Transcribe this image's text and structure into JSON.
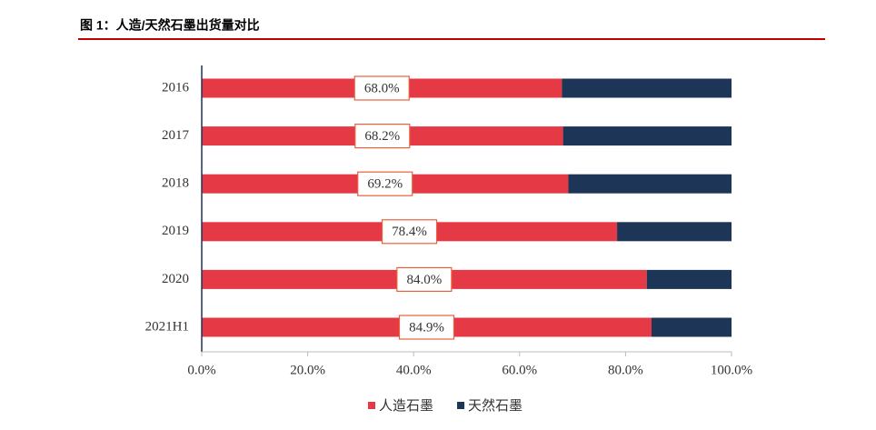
{
  "chart_data": {
    "type": "stacked_barh",
    "title": "图 1：人造/天然石墨出货量对比",
    "categories": [
      "2016",
      "2017",
      "2018",
      "2019",
      "2020",
      "2021H1"
    ],
    "series": [
      {
        "name": "人造石墨",
        "color": "#e63946",
        "values": [
          68.0,
          68.2,
          69.2,
          78.4,
          84.0,
          84.9
        ],
        "value_labels": [
          "68.0%",
          "68.2%",
          "69.2%",
          "78.4%",
          "84.0%",
          "84.9%"
        ]
      },
      {
        "name": "天然石墨",
        "color": "#1d3557",
        "values": [
          32.0,
          31.8,
          30.8,
          21.6,
          16.0,
          15.1
        ]
      }
    ],
    "xlim": [
      0,
      100
    ],
    "xticks": [
      {
        "value": 0,
        "label": "0.0%"
      },
      {
        "value": 20,
        "label": "20.0%"
      },
      {
        "value": 40,
        "label": "40.0%"
      },
      {
        "value": 60,
        "label": "60.0%"
      },
      {
        "value": 80,
        "label": "80.0%"
      },
      {
        "value": 100,
        "label": "100.0%"
      }
    ],
    "legend": "bottom"
  }
}
